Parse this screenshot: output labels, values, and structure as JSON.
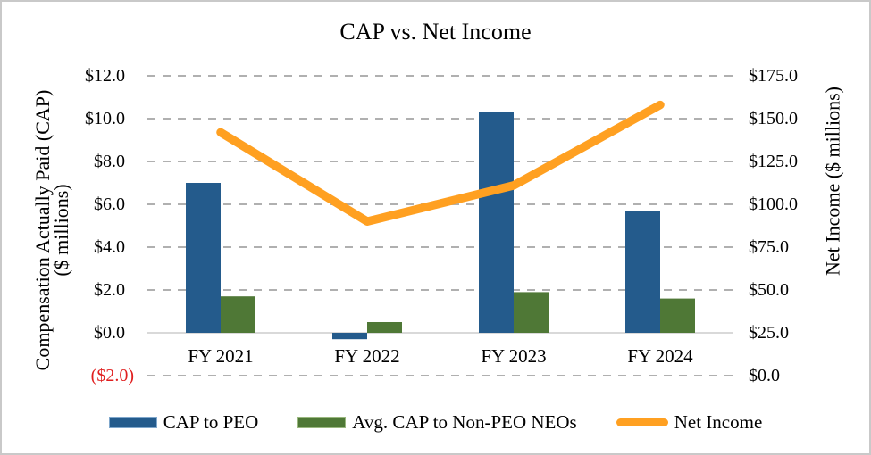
{
  "chart_data": {
    "type": "combo-bar-line",
    "title": "CAP vs. Net Income",
    "categories": [
      "FY 2021",
      "FY 2022",
      "FY 2023",
      "FY 2024"
    ],
    "series": [
      {
        "name": "CAP to PEO",
        "type": "bar",
        "axis": "left",
        "color": "#245b8c",
        "swatch_border": "#7fa7cc",
        "values": [
          7.0,
          -0.3,
          10.3,
          5.7
        ]
      },
      {
        "name": "Avg. CAP to Non-PEO NEOs",
        "type": "bar",
        "axis": "left",
        "color": "#4f7836",
        "swatch_border": "#9ab87f",
        "values": [
          1.7,
          0.5,
          1.9,
          1.6
        ]
      },
      {
        "name": "Net Income",
        "type": "line",
        "axis": "right",
        "color": "#ffa021",
        "values": [
          142.0,
          90.0,
          111.0,
          158.0
        ]
      }
    ],
    "left_axis": {
      "title_line1": "Compensation Actually Paid (CAP)",
      "title_line2": "($ millions)",
      "min": -2,
      "max": 12,
      "ticks": [
        {
          "value": 12,
          "label": "$12.0"
        },
        {
          "value": 10,
          "label": "$10.0"
        },
        {
          "value": 8,
          "label": "$8.0"
        },
        {
          "value": 6,
          "label": "$6.0"
        },
        {
          "value": 4,
          "label": "$4.0"
        },
        {
          "value": 2,
          "label": "$2.0"
        },
        {
          "value": 0,
          "label": "$0.0"
        },
        {
          "value": -2,
          "label": "($2.0)",
          "negative": true
        }
      ]
    },
    "right_axis": {
      "title": "Net Income ($ millions)",
      "min": 0,
      "max": 175,
      "ticks": [
        {
          "value": 175,
          "label": "$175.0"
        },
        {
          "value": 150,
          "label": "$150.0"
        },
        {
          "value": 125,
          "label": "$125.0"
        },
        {
          "value": 100,
          "label": "$100.0"
        },
        {
          "value": 75,
          "label": "$75.0"
        },
        {
          "value": 50,
          "label": "$50.0"
        },
        {
          "value": 25,
          "label": "$25.0"
        },
        {
          "value": 0,
          "label": "$0.0"
        }
      ]
    },
    "grid": "horizontal-dashed",
    "legend_position": "bottom",
    "colors": {
      "negative_tick_text": "#e01f1f",
      "gridline": "#b0b0b0",
      "axis_line": "#d9d9d9"
    }
  }
}
